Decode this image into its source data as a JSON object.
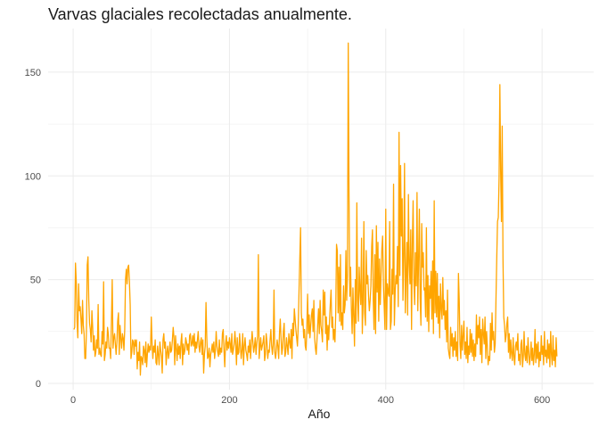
{
  "chart_data": {
    "type": "line",
    "title": "Varvas glaciales recolectadas anualmente.",
    "xlabel": "Año",
    "ylabel": "",
    "xlim": [
      -32,
      666
    ],
    "ylim": [
      -3,
      171
    ],
    "x_ticks": [
      0,
      200,
      400,
      600
    ],
    "y_ticks": [
      0,
      50,
      100,
      150
    ],
    "grid": true,
    "legend": "none",
    "colors": {
      "line": "#FFA500",
      "grid": "#ebebeb"
    },
    "series": [
      {
        "x_start": 1,
        "x_step": 1,
        "values": [
          26,
          27,
          58,
          49,
          30,
          22,
          48,
          35,
          37,
          31,
          24,
          40,
          28,
          24,
          12,
          12,
          25,
          57,
          61,
          40,
          29,
          26,
          20,
          35,
          27,
          16,
          23,
          13,
          15,
          21,
          17,
          38,
          14,
          17,
          14,
          13,
          25,
          19,
          49,
          11,
          14,
          20,
          17,
          27,
          24,
          17,
          17,
          12,
          30,
          50,
          17,
          22,
          24,
          19,
          14,
          20,
          30,
          34,
          14,
          28,
          22,
          17,
          24,
          22,
          16,
          26,
          50,
          55,
          48,
          56,
          57,
          49,
          38,
          12,
          15,
          21,
          20,
          14,
          21,
          18,
          21,
          7,
          15,
          11,
          20,
          4,
          13,
          12,
          9,
          18,
          16,
          10,
          20,
          8,
          14,
          19,
          15,
          18,
          16,
          32,
          19,
          12,
          18,
          15,
          21,
          10,
          9,
          18,
          14,
          9,
          20,
          16,
          13,
          5,
          21,
          24,
          17,
          20,
          9,
          15,
          18,
          12,
          15,
          20,
          15,
          16,
          21,
          27,
          22,
          9,
          23,
          17,
          11,
          19,
          14,
          18,
          12,
          20,
          24,
          9,
          19,
          14,
          16,
          22,
          20,
          16,
          19,
          14,
          23,
          24,
          18,
          19,
          23,
          18,
          24,
          15,
          20,
          17,
          21,
          25,
          18,
          15,
          20,
          22,
          14,
          21,
          5,
          14,
          18,
          39,
          22,
          12,
          13,
          17,
          8,
          14,
          16,
          19,
          15,
          20,
          12,
          16,
          25,
          18,
          15,
          13,
          21,
          14,
          17,
          15,
          24,
          26,
          16,
          8,
          19,
          23,
          16,
          20,
          17,
          22,
          19,
          15,
          24,
          14,
          16,
          19,
          25,
          19,
          9,
          22,
          14,
          15,
          24,
          18,
          12,
          16,
          24,
          9,
          18,
          22,
          16,
          14,
          11,
          18,
          15,
          21,
          12,
          19,
          25,
          20,
          15,
          18,
          22,
          14,
          19,
          23,
          62,
          12,
          17,
          22,
          16,
          18,
          20,
          23,
          11,
          14,
          24,
          20,
          12,
          16,
          15,
          21,
          26,
          18,
          14,
          19,
          45,
          15,
          12,
          16,
          21,
          18,
          12,
          24,
          31,
          22,
          14,
          17,
          25,
          29,
          13,
          15,
          22,
          18,
          14,
          24,
          20,
          17,
          26,
          12,
          29,
          23,
          36,
          31,
          26,
          22,
          18,
          28,
          44,
          60,
          75,
          34,
          28,
          31,
          22,
          26,
          18,
          16,
          27,
          43,
          24,
          33,
          22,
          28,
          33,
          36,
          25,
          40,
          22,
          17,
          14,
          21,
          29,
          36,
          24,
          40,
          28,
          25,
          20,
          45,
          33,
          44,
          24,
          32,
          16,
          28,
          21,
          30,
          38,
          45,
          27,
          32,
          21,
          26,
          20,
          34,
          67,
          64,
          34,
          56,
          30,
          62,
          28,
          34,
          26,
          47,
          34,
          38,
          64,
          40,
          52,
          164,
          90,
          42,
          56,
          36,
          24,
          46,
          32,
          18,
          50,
          29,
          87,
          40,
          30,
          56,
          45,
          38,
          70,
          24,
          39,
          78,
          34,
          28,
          64,
          48,
          52,
          42,
          35,
          40,
          47,
          66,
          74,
          40,
          26,
          62,
          24,
          76,
          44,
          68,
          30,
          60,
          38,
          52,
          65,
          71,
          48,
          37,
          26,
          84,
          26,
          48,
          44,
          42,
          78,
          26,
          30,
          55,
          43,
          96,
          28,
          44,
          52,
          48,
          66,
          37,
          121,
          52,
          105,
          71,
          89,
          40,
          61,
          106,
          34,
          52,
          68,
          33,
          91,
          58,
          48,
          74,
          26,
          67,
          88,
          49,
          38,
          63,
          47,
          92,
          35,
          60,
          84,
          41,
          28,
          77,
          56,
          63,
          45,
          46,
          32,
          75,
          30,
          52,
          25,
          47,
          41,
          54,
          31,
          59,
          24,
          88,
          34,
          54,
          32,
          53,
          29,
          42,
          22,
          48,
          36,
          31,
          51,
          33,
          40,
          26,
          35,
          20,
          45,
          17,
          14,
          12,
          27,
          18,
          24,
          13,
          22,
          16,
          25,
          13,
          20,
          11,
          53,
          40,
          19,
          12,
          28,
          16,
          23,
          30,
          14,
          20,
          12,
          27,
          10,
          18,
          14,
          26,
          15,
          24,
          13,
          21,
          11,
          19,
          13,
          33,
          19,
          28,
          22,
          32,
          14,
          26,
          10,
          31,
          24,
          19,
          32,
          12,
          25,
          18,
          9,
          13,
          11,
          29,
          16,
          34,
          21,
          25,
          15,
          19,
          40,
          60,
          78,
          80,
          99,
          144,
          102,
          78,
          124,
          60,
          32,
          28,
          20,
          23,
          29,
          32,
          15,
          24,
          12,
          21,
          14,
          11,
          22,
          13,
          9,
          18,
          20,
          16,
          24,
          11,
          14,
          9,
          19,
          21,
          8,
          13,
          25,
          14,
          11,
          18,
          10,
          22,
          15,
          9,
          13,
          20,
          11,
          17,
          9,
          14,
          26,
          10,
          19,
          12,
          20,
          8,
          15,
          11,
          23,
          14,
          18,
          9,
          25,
          13,
          16,
          10,
          21,
          12,
          19,
          8,
          25,
          14,
          9,
          23,
          11,
          16,
          8,
          22,
          13
        ]
      }
    ]
  }
}
